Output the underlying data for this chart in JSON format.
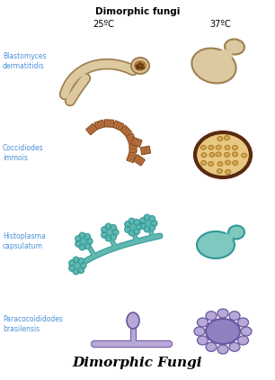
{
  "title_top": "Dimorphic fungi",
  "title_bottom": "Dimorphic Fungi",
  "temp_25": "25ºC",
  "temp_37": "37ºC",
  "labels": [
    "Blastomyces\ndermatitidis",
    "Coccidiodes\nimmois",
    "Histoplasma\ncapsulatum",
    "Paracocoididodes\nbrasilensis"
  ],
  "label_color": "#4a90d9",
  "bg_color": "#ffffff",
  "tan_color": "#dcc9a0",
  "tan_dark": "#b8a070",
  "tan_edge": "#a08050",
  "brown_artho": "#b87040",
  "brown_artho_edge": "#8b5020",
  "coccid_fill": "#e8c880",
  "coccid_edge": "#5a2a10",
  "coccid_spore": "#d4a850",
  "coccid_spore_edge": "#a07020",
  "teal_color": "#60b8b0",
  "teal_dark": "#309898",
  "teal_fill": "#70c8c0",
  "purple_color": "#9080c0",
  "purple_light": "#b8a8d8",
  "purple_edge": "#6858a0"
}
